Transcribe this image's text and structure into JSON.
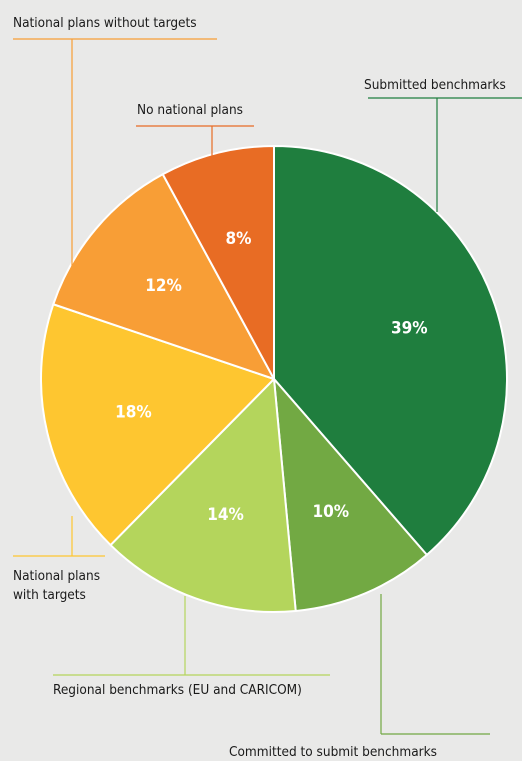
{
  "chart_data": {
    "type": "pie",
    "title": "",
    "slices": [
      {
        "label": "Submitted benchmarks",
        "value": 39,
        "display": "39%",
        "color": "#1f7e3e"
      },
      {
        "label": "Committed to submit benchmarks",
        "value": 10,
        "display": "10%",
        "color": "#72a943"
      },
      {
        "label": "Regional benchmarks  (EU and CARICOM)",
        "value": 14,
        "display": "14%",
        "color": "#b4d55c"
      },
      {
        "label": "National plans with targets",
        "value": 18,
        "display": "18%",
        "color": "#fec630"
      },
      {
        "label": "National plans without targets",
        "value": 12,
        "display": "12%",
        "color": "#f89e36"
      },
      {
        "label": "No national plans",
        "value": 8,
        "display": "8%",
        "color": "#e86c24"
      }
    ]
  },
  "callouts": {
    "submitted": "Submitted benchmarks",
    "committed": "Committed to submit benchmarks",
    "regional": "Regional benchmarks  (EU and CARICOM)",
    "with_targets_line1": "National plans",
    "with_targets_line2": "with targets",
    "without_targets": "National plans without targets",
    "no_plans": "No national plans"
  }
}
